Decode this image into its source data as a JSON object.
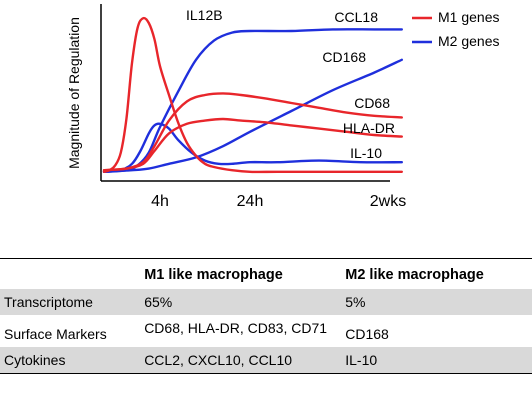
{
  "chart_data": {
    "type": "line",
    "title": "",
    "ylabel": "Magnitude of Regulation",
    "xlabel": "",
    "x_ticks": [
      "4h",
      "24h",
      "2wks"
    ],
    "ylim": [
      0,
      100
    ],
    "legend": {
      "placement": "top-right",
      "entries": [
        {
          "name": "M1 genes",
          "color": "#e8262b"
        },
        {
          "name": "M2 genes",
          "color": "#1f2fdc"
        }
      ]
    },
    "series": [
      {
        "label": "IL12B",
        "group": "M1",
        "color": "#e8262b",
        "x": [
          0,
          0.1,
          0.2,
          0.3,
          0.4,
          0.5,
          0.6,
          0.7,
          0.8,
          0.9,
          1.0,
          1.1,
          1.2,
          1.3,
          1.4,
          1.5,
          1.6,
          1.8,
          2.0,
          2.2,
          2.5,
          2.8,
          3.1
        ],
        "y": [
          2,
          3,
          6,
          14,
          35,
          70,
          92,
          98,
          95,
          85,
          68,
          50,
          33,
          20,
          12,
          7,
          5,
          3,
          2,
          2,
          2,
          2,
          2
        ]
      },
      {
        "label": "CD68",
        "group": "M1",
        "color": "#e8262b",
        "x": [
          0,
          0.4,
          0.7,
          0.9,
          1.1,
          1.3,
          1.5,
          1.7,
          1.9,
          2.1,
          2.3,
          2.5,
          2.7,
          2.9,
          3.1
        ],
        "y": [
          3,
          4,
          8,
          18,
          34,
          46,
          50,
          51,
          50,
          48,
          45,
          42,
          39,
          37,
          36
        ]
      },
      {
        "label": "HLA-DR",
        "group": "M1",
        "color": "#e8262b",
        "x": [
          0,
          0.4,
          0.7,
          0.9,
          1.1,
          1.3,
          1.5,
          1.7,
          1.9,
          2.1,
          2.3,
          2.5,
          2.7,
          2.9,
          3.1
        ],
        "y": [
          3,
          4,
          7,
          15,
          26,
          32,
          34,
          35,
          34,
          33,
          31,
          29,
          27,
          25,
          24
        ]
      },
      {
        "label": "CCL18",
        "group": "M2",
        "color": "#1f2fdc",
        "x": [
          0,
          0.4,
          0.6,
          0.8,
          1.0,
          1.2,
          1.4,
          1.6,
          1.8,
          2.0,
          2.3,
          2.6,
          2.9,
          3.1
        ],
        "y": [
          2,
          3,
          6,
          14,
          30,
          52,
          72,
          84,
          89,
          90,
          90,
          91,
          91,
          91
        ]
      },
      {
        "label": "CD168",
        "group": "M2",
        "color": "#1f2fdc",
        "x": [
          0,
          0.5,
          0.8,
          1.1,
          1.4,
          1.7,
          2.0,
          2.3,
          2.6,
          2.9,
          3.1
        ],
        "y": [
          2,
          3,
          4,
          7,
          11,
          18,
          27,
          40,
          53,
          64,
          72
        ]
      },
      {
        "label": "IL-10",
        "group": "M2",
        "color": "#1f2fdc",
        "x": [
          0,
          0.3,
          0.5,
          0.65,
          0.8,
          0.9,
          1.0,
          1.1,
          1.2,
          1.35,
          1.5,
          1.65,
          1.8,
          2.0,
          2.2,
          2.5,
          2.8,
          3.1
        ],
        "y": [
          2,
          3,
          7,
          15,
          26,
          31,
          32,
          29,
          22,
          14,
          9,
          7,
          7,
          8,
          8,
          9,
          8,
          8
        ]
      }
    ]
  },
  "table": {
    "headers": [
      "",
      "M1 like macrophage",
      "M2 like macrophage"
    ],
    "rows": [
      {
        "label": "Transcriptome",
        "m1": "65%",
        "m2": "5%"
      },
      {
        "label": "Surface Markers",
        "m1": "CD68, HLA-DR, CD83, CD71",
        "m2": "CD168"
      },
      {
        "label": "Cytokines",
        "m1": "CCL2, CXCL10, CCL10",
        "m2": "IL-10"
      }
    ]
  }
}
